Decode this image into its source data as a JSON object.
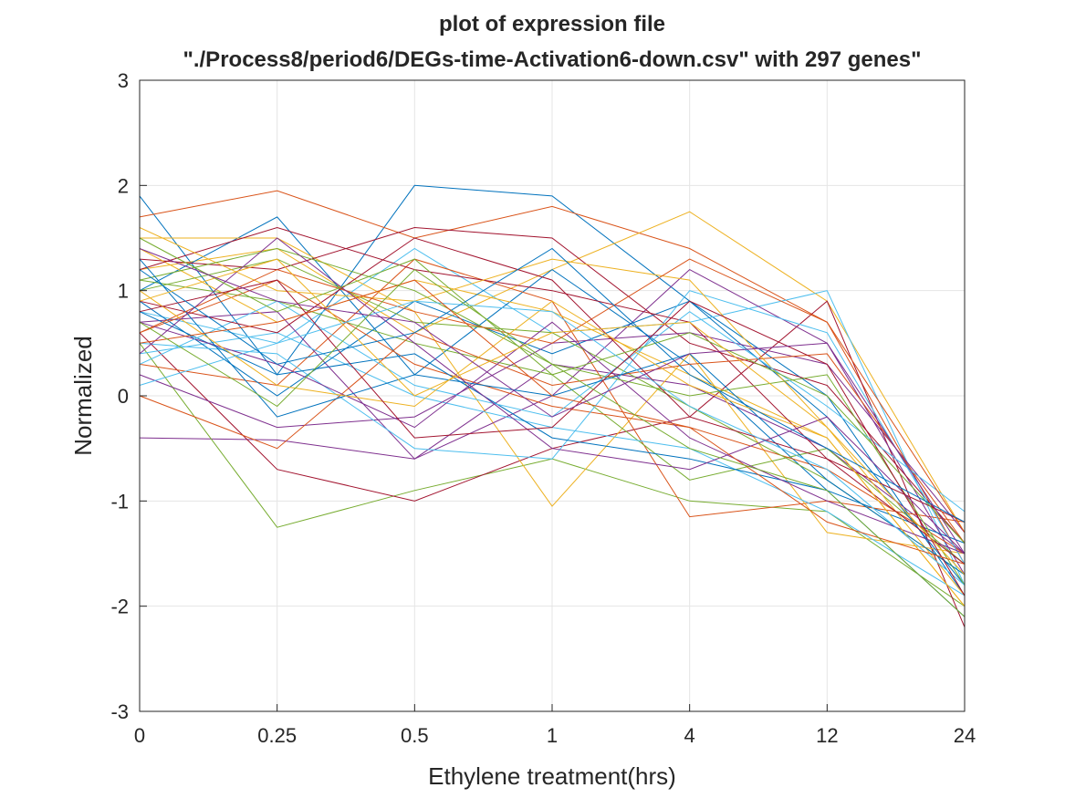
{
  "chart_data": {
    "type": "line",
    "title_line1": "plot of expression file",
    "title_line2": "\"./Process8/period6/DEGs-time-Activation6-down.csv\" with 297 genes\"",
    "xlabel": "Ethylene treatment(hrs)",
    "ylabel": "Normalized",
    "categories": [
      "0",
      "0.25",
      "0.5",
      "1",
      "4",
      "12",
      "24"
    ],
    "yticks": [
      "-3",
      "-2",
      "-1",
      "0",
      "1",
      "2",
      "3"
    ],
    "ylim": [
      -3,
      3
    ],
    "grid": true,
    "n_genes": 297,
    "series_colors": [
      "#0072BD",
      "#D95319",
      "#EDB120",
      "#7E2F8E",
      "#77AC30",
      "#4DBEEE",
      "#A2142F"
    ],
    "series": [
      {
        "values": [
          1.9,
          0.2,
          2.0,
          1.9,
          0.9,
          0.0,
          -1.9
        ]
      },
      {
        "values": [
          1.7,
          1.95,
          1.5,
          1.8,
          1.4,
          0.7,
          -1.6
        ]
      },
      {
        "values": [
          1.2,
          1.4,
          0.6,
          1.2,
          1.75,
          0.9,
          -1.3
        ]
      },
      {
        "values": [
          -0.4,
          -0.42,
          -0.6,
          0.3,
          0.1,
          -0.5,
          -1.5
        ]
      },
      {
        "values": [
          0.5,
          -1.25,
          -0.9,
          -0.6,
          -1.0,
          -1.1,
          -2.0
        ]
      },
      {
        "values": [
          0.8,
          0.5,
          1.4,
          0.6,
          0.7,
          1.0,
          -1.8
        ]
      },
      {
        "values": [
          0.6,
          -0.7,
          -1.0,
          -0.5,
          -0.2,
          0.9,
          -2.2
        ]
      },
      {
        "values": [
          1.0,
          1.7,
          0.2,
          1.2,
          0.3,
          -0.9,
          -1.4
        ]
      },
      {
        "values": [
          0.3,
          0.1,
          1.3,
          0.9,
          -1.15,
          -1.0,
          -1.2
        ]
      },
      {
        "values": [
          1.5,
          1.5,
          0.8,
          -1.05,
          0.4,
          -1.3,
          -1.5
        ]
      },
      {
        "values": [
          0.7,
          0.8,
          -0.6,
          0.0,
          1.2,
          0.5,
          -1.7
        ]
      },
      {
        "values": [
          1.1,
          0.9,
          0.5,
          0.2,
          -0.8,
          -0.5,
          -1.6
        ]
      },
      {
        "values": [
          0.4,
          0.6,
          0.0,
          -0.3,
          -0.5,
          -1.1,
          -1.9
        ]
      },
      {
        "values": [
          1.3,
          1.2,
          1.6,
          1.5,
          0.5,
          0.1,
          -1.4
        ]
      },
      {
        "values": [
          0.9,
          0.0,
          0.9,
          0.4,
          0.9,
          -0.2,
          -1.8
        ]
      },
      {
        "values": [
          0.6,
          1.1,
          0.3,
          -0.1,
          -0.3,
          -0.7,
          -1.5
        ]
      },
      {
        "values": [
          1.4,
          0.7,
          1.1,
          0.8,
          0.2,
          -0.4,
          -2.0
        ]
      },
      {
        "values": [
          0.2,
          -0.3,
          -0.2,
          0.5,
          0.6,
          0.3,
          -1.3
        ]
      },
      {
        "values": [
          1.0,
          1.3,
          0.7,
          0.6,
          -0.1,
          -0.8,
          -1.7
        ]
      },
      {
        "values": [
          0.5,
          0.4,
          -0.5,
          -0.6,
          1.0,
          0.6,
          -1.6
        ]
      },
      {
        "values": [
          1.2,
          1.6,
          1.2,
          1.0,
          0.7,
          -0.6,
          -1.2
        ]
      },
      {
        "values": [
          0.8,
          0.2,
          0.4,
          -0.4,
          -0.6,
          -0.9,
          -2.1
        ]
      },
      {
        "values": [
          0.0,
          -0.5,
          0.6,
          0.1,
          0.3,
          0.4,
          -1.4
        ]
      },
      {
        "values": [
          1.6,
          1.0,
          0.9,
          1.3,
          1.1,
          -0.3,
          -1.9
        ]
      },
      {
        "values": [
          0.7,
          0.3,
          -0.3,
          0.7,
          -0.4,
          -1.0,
          -1.5
        ]
      },
      {
        "values": [
          1.1,
          1.4,
          1.0,
          0.3,
          0.0,
          0.2,
          -1.8
        ]
      },
      {
        "values": [
          0.3,
          0.9,
          0.1,
          -0.2,
          0.8,
          -0.1,
          -1.1
        ]
      },
      {
        "values": [
          0.9,
          0.6,
          1.5,
          1.1,
          -0.2,
          -0.6,
          -1.6
        ]
      },
      {
        "values": [
          1.3,
          -0.2,
          0.2,
          0.0,
          0.4,
          -0.8,
          -1.7
        ]
      },
      {
        "values": [
          0.6,
          1.2,
          0.8,
          0.5,
          1.3,
          0.7,
          -1.3
        ]
      },
      {
        "values": [
          1.0,
          0.1,
          -0.1,
          0.9,
          0.1,
          -0.4,
          -2.0
        ]
      },
      {
        "values": [
          0.4,
          1.5,
          0.5,
          -0.5,
          -0.7,
          -0.2,
          -1.5
        ]
      },
      {
        "values": [
          1.5,
          0.8,
          1.3,
          0.2,
          0.6,
          0.0,
          -1.4
        ]
      },
      {
        "values": [
          0.1,
          0.5,
          0.9,
          0.8,
          -0.1,
          -0.7,
          -1.8
        ]
      },
      {
        "values": [
          0.8,
          1.1,
          -0.4,
          -0.3,
          0.9,
          0.3,
          -1.9
        ]
      },
      {
        "values": [
          1.2,
          0.3,
          0.6,
          1.4,
          0.2,
          -0.5,
          -1.2
        ]
      },
      {
        "values": [
          0.5,
          0.7,
          1.1,
          0.0,
          -0.3,
          -1.2,
          -1.6
        ]
      },
      {
        "values": [
          0.9,
          1.3,
          0.0,
          0.6,
          0.7,
          -0.3,
          -1.7
        ]
      },
      {
        "values": [
          1.4,
          0.9,
          0.7,
          -0.2,
          0.4,
          0.5,
          -1.5
        ]
      },
      {
        "values": [
          0.7,
          -0.1,
          1.2,
          0.3,
          -0.5,
          -0.9,
          -2.1
        ]
      }
    ]
  }
}
